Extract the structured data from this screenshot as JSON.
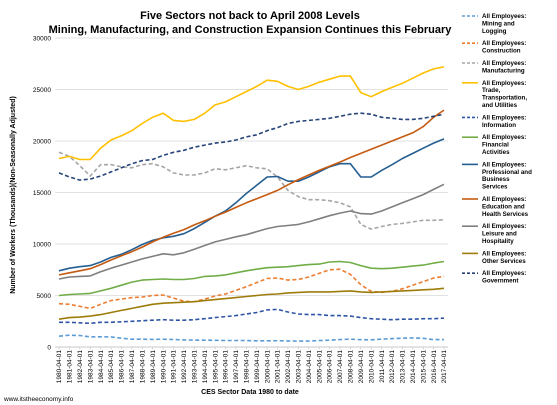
{
  "chart_data": {
    "type": "line",
    "title": [
      "Five Sectors not back to April 2008 Levels",
      "Mining, Manufacturing, and Construction Expansion Continues this February"
    ],
    "xlabel": "CES Sector Data 1980 to date",
    "ylabel": "Number of Workers (Thousands)(Non-Seasonally Adjusted)",
    "ylim": [
      0,
      30000
    ],
    "yticks": [
      "0",
      "5000",
      "10000",
      "15000",
      "20000",
      "25000",
      "30000"
    ],
    "x": [
      "1980-04-01",
      "1981-04-01",
      "1982-04-01",
      "1983-04-01",
      "1984-04-01",
      "1985-04-01",
      "1986-04-01",
      "1987-04-01",
      "1988-04-01",
      "1989-04-01",
      "1990-04-01",
      "1991-04-01",
      "1992-04-01",
      "1993-04-01",
      "1994-04-01",
      "1995-04-01",
      "1996-04-01",
      "1997-04-01",
      "1998-04-01",
      "1999-04-01",
      "2000-04-01",
      "2001-04-01",
      "2002-04-01",
      "2003-04-01",
      "2004-04-01",
      "2005-04-01",
      "2006-04-01",
      "2007-04-01",
      "2008-04-01",
      "2009-04-01",
      "2010-04-01",
      "2011-04-01",
      "2012-04-01",
      "2013-04-01",
      "2014-04-01",
      "2015-04-01",
      "2016-04-01",
      "2017-04-01"
    ],
    "grid": true,
    "legend_position": "right",
    "credit": "www.itstheeconomy.info",
    "series": [
      {
        "name": [
          "All Employees:",
          "Mining and",
          "Logging"
        ],
        "color": "#5b9bd5",
        "dash": true,
        "values": [
          1050,
          1150,
          1120,
          980,
          990,
          980,
          850,
          760,
          760,
          740,
          760,
          730,
          690,
          670,
          660,
          650,
          630,
          630,
          630,
          600,
          600,
          610,
          590,
          570,
          580,
          620,
          660,
          720,
          770,
          710,
          700,
          760,
          820,
          850,
          880,
          840,
          720,
          720
        ]
      },
      {
        "name": [
          "All Employees:",
          "Construction"
        ],
        "color": "#ed7d31",
        "dash": true,
        "values": [
          4200,
          4150,
          3950,
          3750,
          4150,
          4500,
          4650,
          4800,
          4850,
          5000,
          5050,
          4750,
          4450,
          4400,
          4650,
          4950,
          5150,
          5500,
          5850,
          6250,
          6650,
          6700,
          6500,
          6550,
          6800,
          7150,
          7500,
          7550,
          7050,
          6050,
          5400,
          5300,
          5400,
          5650,
          6000,
          6350,
          6700,
          6850
        ]
      },
      {
        "name": [
          "All Employees:",
          "Manufacturing"
        ],
        "color": "#a5a5a5",
        "dash": true,
        "values": [
          18900,
          18500,
          17600,
          16600,
          17700,
          17700,
          17500,
          17400,
          17700,
          17800,
          17500,
          16900,
          16700,
          16700,
          16900,
          17300,
          17200,
          17400,
          17600,
          17400,
          17300,
          16500,
          15200,
          14600,
          14300,
          14300,
          14200,
          14000,
          13600,
          11900,
          11450,
          11700,
          11900,
          12000,
          12150,
          12300,
          12300,
          12350
        ]
      },
      {
        "name": [
          "All Employees:",
          "Trade,",
          "Transportation,",
          "and Utilities"
        ],
        "color": "#ffc000",
        "dash": false,
        "values": [
          18300,
          18500,
          18200,
          18200,
          19300,
          20100,
          20500,
          21000,
          21700,
          22300,
          22700,
          22000,
          21900,
          22100,
          22700,
          23500,
          23800,
          24300,
          24800,
          25300,
          25900,
          25800,
          25300,
          25000,
          25300,
          25700,
          26000,
          26300,
          26300,
          24700,
          24300,
          24800,
          25200,
          25600,
          26100,
          26600,
          27000,
          27200
        ]
      },
      {
        "name": [
          "All Employees:",
          "Information"
        ],
        "color": "#2e54a5",
        "dash": true,
        "values": [
          2400,
          2400,
          2350,
          2300,
          2400,
          2400,
          2450,
          2500,
          2550,
          2600,
          2650,
          2600,
          2600,
          2650,
          2750,
          2850,
          2950,
          3050,
          3200,
          3350,
          3600,
          3650,
          3400,
          3200,
          3150,
          3150,
          3050,
          3050,
          3000,
          2850,
          2750,
          2700,
          2650,
          2700,
          2700,
          2750,
          2750,
          2800
        ]
      },
      {
        "name": [
          "All Employees:",
          "Financial",
          "Activities"
        ],
        "color": "#70ad47",
        "dash": false,
        "values": [
          5000,
          5100,
          5150,
          5200,
          5450,
          5700,
          6000,
          6300,
          6500,
          6550,
          6600,
          6550,
          6550,
          6650,
          6850,
          6900,
          7000,
          7200,
          7400,
          7550,
          7700,
          7750,
          7800,
          7900,
          8000,
          8050,
          8250,
          8300,
          8200,
          7900,
          7650,
          7600,
          7650,
          7750,
          7850,
          7950,
          8150,
          8300
        ]
      },
      {
        "name": [
          "All Employees:",
          "Professional and",
          "Business",
          "Services"
        ],
        "color": "#255e91",
        "dash": false,
        "values": [
          7400,
          7650,
          7800,
          7900,
          8250,
          8700,
          9000,
          9450,
          9950,
          10350,
          10600,
          10750,
          11000,
          11500,
          12100,
          12700,
          13200,
          14000,
          14900,
          15700,
          16500,
          16550,
          16100,
          16100,
          16500,
          17000,
          17500,
          17800,
          17800,
          16500,
          16500,
          17150,
          17700,
          18300,
          18800,
          19300,
          19800,
          20200
        ]
      },
      {
        "name": [
          "All Employees:",
          "Education and",
          "Health Services"
        ],
        "color": "#c55a11",
        "dash": false,
        "values": [
          7000,
          7200,
          7400,
          7600,
          8000,
          8450,
          8850,
          9250,
          9700,
          10200,
          10650,
          11050,
          11400,
          11850,
          12250,
          12700,
          13100,
          13550,
          14000,
          14400,
          14800,
          15200,
          15750,
          16250,
          16700,
          17150,
          17550,
          17950,
          18400,
          18800,
          19200,
          19600,
          20000,
          20400,
          20800,
          21400,
          22300,
          23000
        ]
      },
      {
        "name": [
          "All Employees:",
          "Leisure and",
          "Hospitality"
        ],
        "color": "#7f7f7f",
        "dash": false,
        "values": [
          6600,
          6800,
          6850,
          6900,
          7300,
          7650,
          7950,
          8250,
          8550,
          8800,
          9050,
          8950,
          9150,
          9500,
          9850,
          10200,
          10450,
          10700,
          10900,
          11200,
          11500,
          11700,
          11800,
          11900,
          12150,
          12450,
          12750,
          13000,
          13200,
          12950,
          12900,
          13200,
          13600,
          14000,
          14400,
          14800,
          15300,
          15800
        ]
      },
      {
        "name": [
          "All Employees:",
          "Other Services"
        ],
        "color": "#9e7c0c",
        "dash": false,
        "values": [
          2700,
          2850,
          2900,
          3000,
          3150,
          3350,
          3550,
          3750,
          3950,
          4150,
          4250,
          4300,
          4350,
          4400,
          4500,
          4600,
          4700,
          4800,
          4900,
          5000,
          5100,
          5150,
          5250,
          5300,
          5350,
          5350,
          5350,
          5400,
          5450,
          5350,
          5300,
          5350,
          5400,
          5450,
          5500,
          5550,
          5600,
          5700
        ]
      },
      {
        "name": [
          "All Employees:",
          "Government"
        ],
        "color": "#264478",
        "dash": true,
        "values": [
          16900,
          16500,
          16200,
          16300,
          16600,
          17000,
          17400,
          17800,
          18100,
          18200,
          18600,
          18900,
          19100,
          19400,
          19600,
          19800,
          19900,
          20100,
          20400,
          20600,
          21000,
          21300,
          21700,
          21900,
          22000,
          22100,
          22200,
          22400,
          22600,
          22700,
          22600,
          22300,
          22200,
          22100,
          22100,
          22200,
          22400,
          22600
        ]
      }
    ]
  }
}
